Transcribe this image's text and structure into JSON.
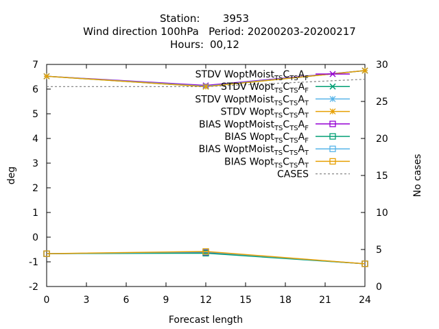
{
  "chart_data": {
    "type": "line",
    "title": {
      "station_label": "Station:",
      "station": "3953",
      "line2": "Wind direction 100hPa   Period: 20200203-20200217",
      "hours_label": "Hours:",
      "hours": "00,12"
    },
    "xlabel": "Forecast length",
    "ylabel": "deg",
    "y2label": "No cases",
    "xlim": [
      0,
      24
    ],
    "ylim": [
      -2,
      7
    ],
    "y2lim": [
      0,
      30
    ],
    "xticks": [
      0,
      3,
      6,
      9,
      12,
      15,
      18,
      21,
      24
    ],
    "yticks": [
      -2,
      -1,
      0,
      1,
      2,
      3,
      4,
      5,
      6,
      7
    ],
    "y2ticks": [
      0,
      5,
      10,
      15,
      20,
      25,
      30
    ],
    "grid": false,
    "legend_position": "top-right",
    "series": [
      {
        "name": "STDV WoptMoist TS CTS AF",
        "prefix": "STDV WoptMoist",
        "subs": [
          "TS",
          "C",
          "TS",
          "A",
          "F"
        ],
        "color": "#9400d3",
        "marker": "x",
        "axis": "y",
        "x": [
          0,
          12,
          24
        ],
        "values": [
          6.52,
          6.15,
          6.75
        ]
      },
      {
        "name": "STDV Wopt TS CTS AF",
        "prefix": "STDV Wopt",
        "subs": [
          "TS",
          "C",
          "TS",
          "A",
          "F"
        ],
        "color": "#009e73",
        "marker": "x",
        "axis": "y",
        "x": [
          0,
          12,
          24
        ],
        "values": [
          6.52,
          6.1,
          6.75
        ]
      },
      {
        "name": "STDV WoptMoist TS CTS AT",
        "prefix": "STDV WoptMoist",
        "subs": [
          "TS",
          "C",
          "TS",
          "A",
          "T"
        ],
        "color": "#56b4e9",
        "marker": "star",
        "axis": "y",
        "x": [
          0,
          12,
          24
        ],
        "values": [
          6.52,
          6.12,
          6.75
        ]
      },
      {
        "name": "STDV Wopt TS CTS AT",
        "prefix": "STDV Wopt",
        "subs": [
          "TS",
          "C",
          "TS",
          "A",
          "T"
        ],
        "color": "#e69f00",
        "marker": "star",
        "axis": "y",
        "x": [
          0,
          12,
          24
        ],
        "values": [
          6.52,
          6.1,
          6.75
        ]
      },
      {
        "name": "BIAS WoptMoist TS CTS AF",
        "prefix": "BIAS WoptMoist",
        "subs": [
          "TS",
          "C",
          "TS",
          "A",
          "F"
        ],
        "color": "#9400d3",
        "marker": "square",
        "axis": "y",
        "x": [
          0,
          12,
          24
        ],
        "values": [
          -0.67,
          -0.62,
          -1.08
        ]
      },
      {
        "name": "BIAS Wopt TS CTS AF",
        "prefix": "BIAS Wopt",
        "subs": [
          "TS",
          "C",
          "TS",
          "A",
          "F"
        ],
        "color": "#009e73",
        "marker": "square",
        "axis": "y",
        "x": [
          0,
          12,
          24
        ],
        "values": [
          -0.67,
          -0.65,
          -1.08
        ]
      },
      {
        "name": "BIAS WoptMoist TS CTS AT",
        "prefix": "BIAS WoptMoist",
        "subs": [
          "TS",
          "C",
          "TS",
          "A",
          "T"
        ],
        "color": "#56b4e9",
        "marker": "square",
        "axis": "y",
        "x": [
          0,
          12,
          24
        ],
        "values": [
          -0.67,
          -0.6,
          -1.08
        ]
      },
      {
        "name": "BIAS Wopt TS CTS AT",
        "prefix": "BIAS Wopt",
        "subs": [
          "TS",
          "C",
          "TS",
          "A",
          "T"
        ],
        "color": "#e69f00",
        "marker": "square",
        "axis": "y",
        "x": [
          0,
          12,
          24
        ],
        "values": [
          -0.67,
          -0.58,
          -1.08
        ]
      },
      {
        "name": "CASES",
        "prefix": "CASES",
        "subs": [],
        "color": "#888888",
        "marker": "none",
        "dashed": true,
        "axis": "y2",
        "x": [
          0,
          12,
          24
        ],
        "values": [
          27,
          27,
          28
        ]
      }
    ]
  }
}
